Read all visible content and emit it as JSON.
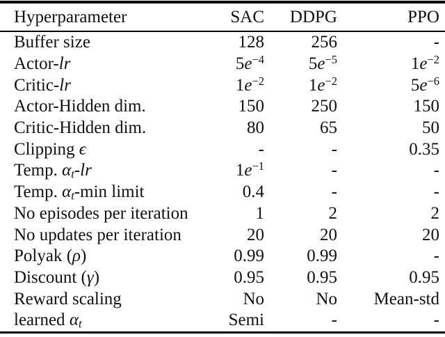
{
  "table": {
    "colors": {
      "text": "#111111",
      "rule": "#000000",
      "background": "#ffffff"
    },
    "headers": [
      "Hyperparameter",
      "SAC",
      "DDPG",
      "PPO"
    ],
    "rows": [
      {
        "label": [
          [
            "t",
            "Buffer size"
          ]
        ],
        "values": [
          [
            [
              "t",
              "128"
            ]
          ],
          [
            [
              "t",
              "256"
            ]
          ],
          [
            [
              "t",
              "-"
            ]
          ]
        ]
      },
      {
        "label": [
          [
            "t",
            "Actor-"
          ],
          [
            "i",
            "lr"
          ]
        ],
        "values": [
          [
            [
              "t",
              "5"
            ],
            [
              "i",
              "e"
            ],
            [
              "sup",
              "−4"
            ]
          ],
          [
            [
              "t",
              "5"
            ],
            [
              "i",
              "e"
            ],
            [
              "sup",
              "−5"
            ]
          ],
          [
            [
              "t",
              "1"
            ],
            [
              "i",
              "e"
            ],
            [
              "sup",
              "−2"
            ]
          ]
        ]
      },
      {
        "label": [
          [
            "t",
            "Critic-"
          ],
          [
            "i",
            "lr"
          ]
        ],
        "values": [
          [
            [
              "t",
              "1"
            ],
            [
              "i",
              "e"
            ],
            [
              "sup",
              "−2"
            ]
          ],
          [
            [
              "t",
              "1"
            ],
            [
              "i",
              "e"
            ],
            [
              "sup",
              "−2"
            ]
          ],
          [
            [
              "t",
              "5"
            ],
            [
              "i",
              "e"
            ],
            [
              "sup",
              "−6"
            ]
          ]
        ]
      },
      {
        "label": [
          [
            "t",
            "Actor-Hidden dim."
          ]
        ],
        "values": [
          [
            [
              "t",
              "150"
            ]
          ],
          [
            [
              "t",
              "250"
            ]
          ],
          [
            [
              "t",
              "150"
            ]
          ]
        ]
      },
      {
        "label": [
          [
            "t",
            "Critic-Hidden dim."
          ]
        ],
        "values": [
          [
            [
              "t",
              "80"
            ]
          ],
          [
            [
              "t",
              "65"
            ]
          ],
          [
            [
              "t",
              "50"
            ]
          ]
        ]
      },
      {
        "label": [
          [
            "t",
            "Clipping "
          ],
          [
            "i",
            "ϵ"
          ]
        ],
        "values": [
          [
            [
              "t",
              "-"
            ]
          ],
          [
            [
              "t",
              "-"
            ]
          ],
          [
            [
              "t",
              "0.35"
            ]
          ]
        ]
      },
      {
        "label": [
          [
            "t",
            "Temp. "
          ],
          [
            "i",
            "α"
          ],
          [
            "sub",
            "t"
          ],
          [
            "t",
            "-"
          ],
          [
            "i",
            "lr"
          ]
        ],
        "values": [
          [
            [
              "t",
              "1"
            ],
            [
              "i",
              "e"
            ],
            [
              "sup",
              "−1"
            ]
          ],
          [
            [
              "t",
              "-"
            ]
          ],
          [
            [
              "t",
              "-"
            ]
          ]
        ]
      },
      {
        "label": [
          [
            "t",
            "Temp. "
          ],
          [
            "i",
            "α"
          ],
          [
            "sub",
            "t"
          ],
          [
            "t",
            "-min limit"
          ]
        ],
        "values": [
          [
            [
              "t",
              "0.4"
            ]
          ],
          [
            [
              "t",
              "-"
            ]
          ],
          [
            [
              "t",
              "-"
            ]
          ]
        ]
      },
      {
        "label": [
          [
            "t",
            "No episodes per iteration"
          ]
        ],
        "values": [
          [
            [
              "t",
              "1"
            ]
          ],
          [
            [
              "t",
              "2"
            ]
          ],
          [
            [
              "t",
              "2"
            ]
          ]
        ]
      },
      {
        "label": [
          [
            "t",
            "No updates per iteration"
          ]
        ],
        "values": [
          [
            [
              "t",
              "20"
            ]
          ],
          [
            [
              "t",
              "20"
            ]
          ],
          [
            [
              "t",
              "20"
            ]
          ]
        ]
      },
      {
        "label": [
          [
            "t",
            "Polyak ("
          ],
          [
            "i",
            "ρ"
          ],
          [
            "t",
            ")"
          ]
        ],
        "values": [
          [
            [
              "t",
              "0.99"
            ]
          ],
          [
            [
              "t",
              "0.99"
            ]
          ],
          [
            [
              "t",
              "-"
            ]
          ]
        ]
      },
      {
        "label": [
          [
            "t",
            "Discount ("
          ],
          [
            "i",
            "γ"
          ],
          [
            "t",
            ")"
          ]
        ],
        "values": [
          [
            [
              "t",
              "0.95"
            ]
          ],
          [
            [
              "t",
              "0.95"
            ]
          ],
          [
            [
              "t",
              "0.95"
            ]
          ]
        ]
      },
      {
        "label": [
          [
            "t",
            "Reward scaling"
          ]
        ],
        "values": [
          [
            [
              "t",
              "No"
            ]
          ],
          [
            [
              "t",
              "No"
            ]
          ],
          [
            [
              "t",
              "Mean-std"
            ]
          ]
        ]
      },
      {
        "label": [
          [
            "t",
            "learned "
          ],
          [
            "i",
            "α"
          ],
          [
            "sub",
            "t"
          ]
        ],
        "values": [
          [
            [
              "t",
              "Semi"
            ]
          ],
          [
            [
              "t",
              "-"
            ]
          ],
          [
            [
              "t",
              "-"
            ]
          ]
        ]
      }
    ]
  }
}
